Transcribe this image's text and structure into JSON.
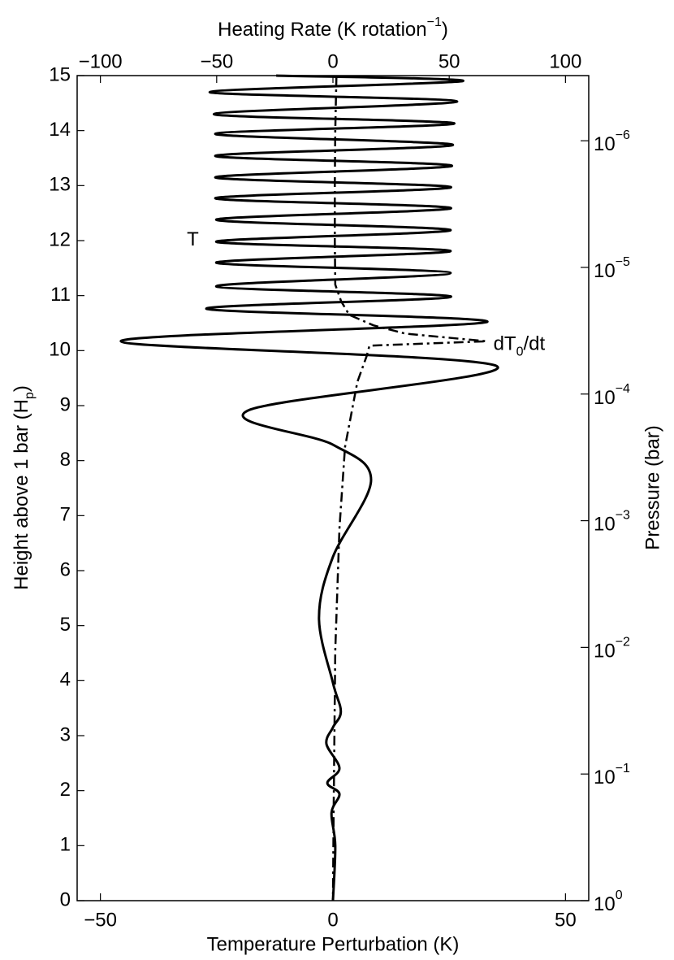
{
  "chart_data": {
    "type": "profile",
    "xlabel": "Temperature Perturbation (K)",
    "x2label": [
      {
        "text": "Heating Rate (K rotation"
      },
      {
        "text": "−1",
        "baseline": "super"
      },
      {
        "text": ")"
      }
    ],
    "ylabel": [
      {
        "text": "Height above 1 bar (H"
      },
      {
        "text": "p",
        "baseline": "sub"
      },
      {
        "text": ")"
      }
    ],
    "y2label": "Pressure (bar)",
    "xlim": [
      -55,
      55
    ],
    "xticks": [
      {
        "value": -50,
        "label": "−50"
      },
      0,
      50
    ],
    "x2lim": [
      -110,
      110
    ],
    "x2ticks": [
      {
        "value": -100,
        "label": "−100"
      },
      {
        "value": -50,
        "label": "−50"
      },
      0,
      50,
      100
    ],
    "ylim": [
      0,
      15
    ],
    "yticks": [
      0,
      1,
      2,
      3,
      4,
      5,
      6,
      7,
      8,
      9,
      10,
      11,
      12,
      13,
      14,
      15
    ],
    "y2lim": [
      1,
      3.059e-07
    ],
    "y2scale": "log",
    "y2ticks": [
      {
        "value": 1,
        "label": "10",
        "exponent": "0"
      },
      {
        "value": 0.1,
        "label": "10",
        "exponent": "−1"
      },
      {
        "value": 0.01,
        "label": "10",
        "exponent": "−2"
      },
      {
        "value": 0.001,
        "label": "10",
        "exponent": "−3"
      },
      {
        "value": 0.0001,
        "label": "10",
        "exponent": "−4"
      },
      {
        "value": 1e-05,
        "label": "10",
        "exponent": "−5"
      },
      {
        "value": 1e-06,
        "label": "10",
        "exponent": "−6"
      }
    ],
    "series": [
      {
        "color": "#000000",
        "style": "solid",
        "axis": "x",
        "smooth": true,
        "y": [
          15,
          14.9,
          14.7,
          14.53,
          14.3,
          14.13,
          13.94,
          13.74,
          13.54,
          13.36,
          13.15,
          12.97,
          12.77,
          12.59,
          12.38,
          12.19,
          11.98,
          11.81,
          11.6,
          11.41,
          11.17,
          10.98,
          10.76,
          10.52,
          10.17,
          9.72,
          8.91,
          8.29,
          7.65,
          6.25,
          5.14,
          3.96,
          3.44,
          3.15,
          2.85,
          2.41,
          2.14,
          1.94,
          1.6,
          1.0,
          0
        ],
        "x": [
          -12.2,
          27.9,
          -26.5,
          26.7,
          -25.6,
          26.1,
          -25.3,
          25.8,
          -25.3,
          25.6,
          -25.3,
          25.4,
          -25.3,
          25.4,
          -25.1,
          25.3,
          -25.1,
          25.3,
          -25.1,
          25.3,
          -25.1,
          25.4,
          -27.2,
          33.1,
          -45.6,
          35.2,
          -18.3,
          0,
          8.2,
          0,
          -3.0,
          0,
          1.7,
          0,
          -1.4,
          1.4,
          -1.2,
          1.4,
          -0.3,
          0.5,
          0
        ]
      },
      {
        "color": "#000000",
        "style": "dashdot",
        "axis": "x2",
        "smooth": false,
        "y": [
          15,
          14,
          13,
          12,
          11.2,
          10.9,
          10.65,
          10.46,
          10.31,
          10.17,
          10.09,
          9.9,
          9.43,
          8.25,
          6.77,
          4.55,
          1.6,
          0
        ],
        "x": [
          1.5,
          1.0,
          0.8,
          0.8,
          1.0,
          3.5,
          7,
          17.4,
          31,
          66,
          15.7,
          14.5,
          10.5,
          5.2,
          2.8,
          1.0,
          0.3,
          0
        ]
      }
    ],
    "annotations": [
      {
        "parts": [
          {
            "text": "T"
          }
        ],
        "x": -31.4,
        "y": 12.0,
        "axis": "x"
      },
      {
        "parts": [
          {
            "text": "dT"
          },
          {
            "text": "0",
            "baseline": "sub"
          },
          {
            "text": "/dt"
          }
        ],
        "x": 69,
        "y": 10.1,
        "axis": "x2"
      }
    ]
  }
}
